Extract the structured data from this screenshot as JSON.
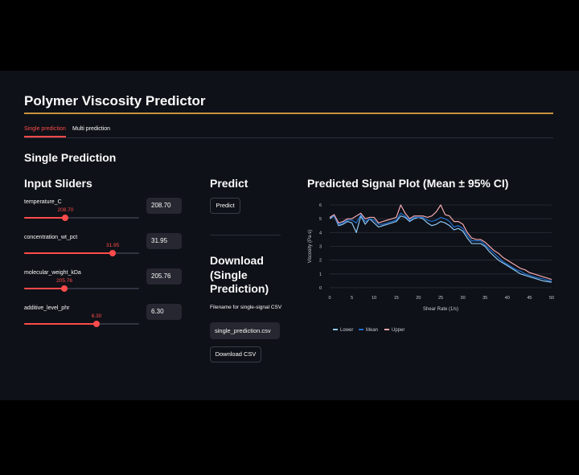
{
  "app_title": "Polymer Viscosity Predictor",
  "tabs": [
    "Single prediction",
    "Multi prediction"
  ],
  "section_title": "Single Prediction",
  "inputs_heading": "Input Sliders",
  "predict_heading": "Predict",
  "plot_heading": "Predicted Signal Plot (Mean ± 95% CI)",
  "sliders": [
    {
      "label": "temperature_C",
      "value": "208.70",
      "fraction": 0.36
    },
    {
      "label": "concentration_wt_pct",
      "value": "31.95",
      "fraction": 0.77
    },
    {
      "label": "molecular_weight_kDa",
      "value": "205.76",
      "fraction": 0.35
    },
    {
      "label": "additive_level_phr",
      "value": "6.30",
      "fraction": 0.63
    }
  ],
  "predict_button": "Predict",
  "download_heading": "Download (Single Prediction)",
  "filename_label": "Filename for single-signal CSV",
  "filename_value": "single_prediction.csv",
  "download_button": "Download CSV",
  "colors": {
    "accent": "#ff4b4b",
    "title_rule": "#c9923f",
    "lower": "#8fc6f2",
    "mean": "#1f6fcf",
    "upper": "#f4a9b1"
  },
  "chart_data": {
    "type": "line",
    "xlabel": "Shear Rate (1/s)",
    "ylabel": "Viscosity (Pa·s)",
    "xlim": [
      0,
      50
    ],
    "ylim": [
      0,
      6
    ],
    "xticks": [
      0,
      5,
      10,
      15,
      20,
      25,
      30,
      35,
      40,
      45,
      50
    ],
    "yticks": [
      0,
      1,
      2,
      3,
      4,
      5,
      6
    ],
    "legend_position": "bottom-left",
    "x": [
      0,
      1,
      2,
      3,
      4,
      5,
      6,
      7,
      8,
      9,
      10,
      11,
      12,
      13,
      14,
      15,
      16,
      17,
      18,
      19,
      20,
      21,
      22,
      23,
      24,
      25,
      26,
      27,
      28,
      29,
      30,
      31,
      32,
      33,
      34,
      35,
      36,
      37,
      38,
      39,
      40,
      41,
      42,
      43,
      44,
      45,
      46,
      47,
      48,
      49,
      50
    ],
    "series": [
      {
        "name": "Lower",
        "values": [
          5.0,
          5.2,
          4.5,
          4.6,
          4.8,
          4.7,
          4.0,
          5.2,
          4.6,
          5.0,
          4.7,
          4.4,
          4.5,
          4.6,
          4.7,
          4.8,
          5.2,
          5.1,
          4.8,
          5.0,
          5.1,
          5.0,
          4.7,
          4.5,
          4.6,
          4.8,
          4.7,
          4.5,
          4.2,
          4.3,
          4.1,
          3.6,
          3.2,
          3.2,
          3.2,
          3.0,
          2.6,
          2.3,
          2.0,
          1.8,
          1.6,
          1.4,
          1.2,
          1.0,
          0.9,
          0.8,
          0.7,
          0.6,
          0.5,
          0.45,
          0.4
        ]
      },
      {
        "name": "Mean",
        "values": [
          5.1,
          5.2,
          4.6,
          4.7,
          4.9,
          4.9,
          4.7,
          5.3,
          4.8,
          5.0,
          4.9,
          4.6,
          4.6,
          4.7,
          4.8,
          4.9,
          5.4,
          5.2,
          4.9,
          5.1,
          5.1,
          5.1,
          4.9,
          4.8,
          4.9,
          5.1,
          5.0,
          4.8,
          4.4,
          4.5,
          4.3,
          3.8,
          3.4,
          3.4,
          3.4,
          3.1,
          2.8,
          2.5,
          2.2,
          1.9,
          1.7,
          1.5,
          1.3,
          1.2,
          1.0,
          0.9,
          0.8,
          0.7,
          0.65,
          0.55,
          0.5
        ]
      },
      {
        "name": "Upper",
        "values": [
          5.1,
          5.3,
          4.7,
          4.8,
          5.0,
          5.0,
          5.2,
          5.4,
          5.0,
          5.1,
          5.1,
          4.7,
          4.8,
          4.9,
          5.0,
          5.1,
          6.0,
          5.4,
          5.0,
          5.2,
          5.2,
          5.2,
          5.1,
          5.2,
          5.5,
          6.0,
          5.3,
          5.2,
          4.8,
          4.8,
          4.6,
          4.0,
          3.6,
          3.5,
          3.5,
          3.3,
          3.0,
          2.7,
          2.5,
          2.2,
          2.0,
          1.8,
          1.6,
          1.4,
          1.3,
          1.1,
          1.0,
          0.9,
          0.8,
          0.7,
          0.6
        ]
      }
    ]
  }
}
